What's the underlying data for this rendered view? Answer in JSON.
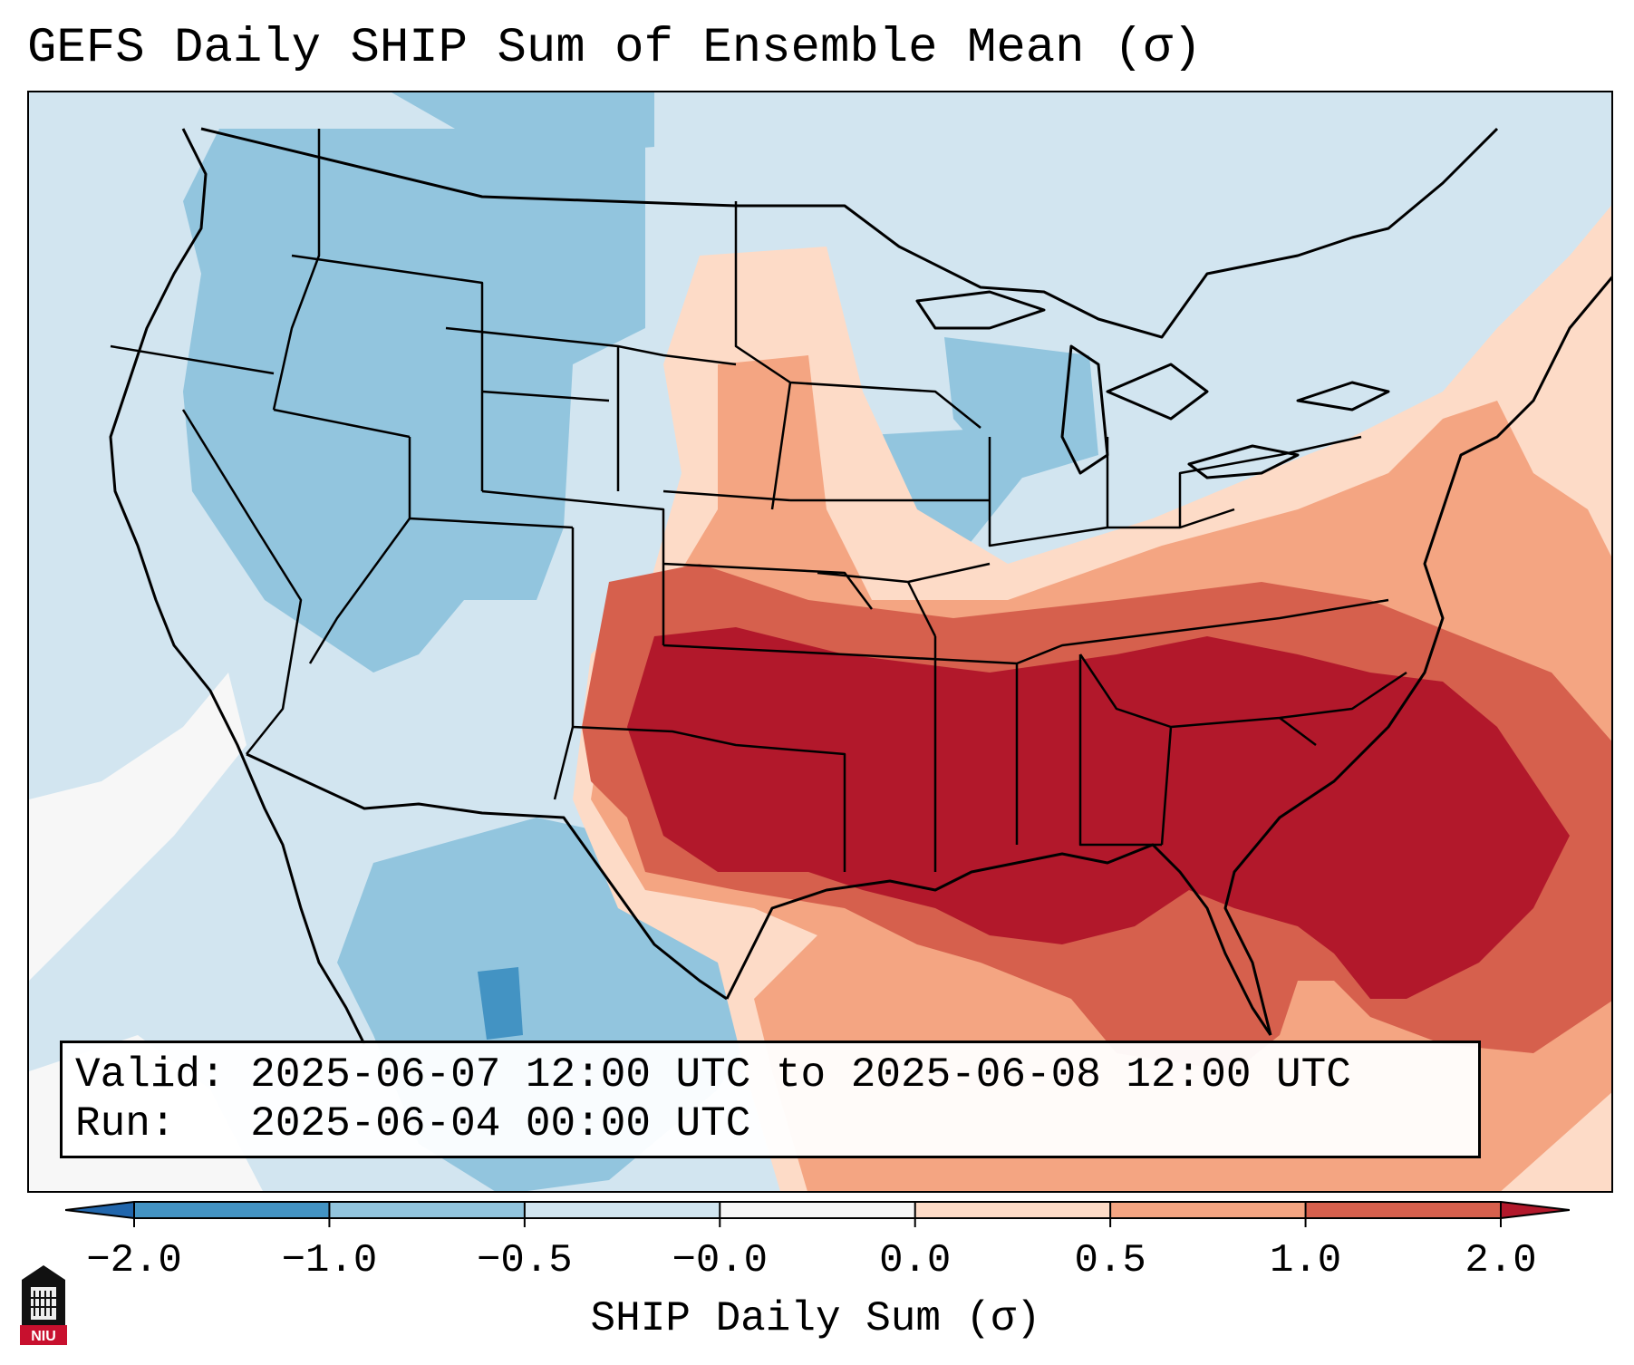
{
  "title": "GEFS Daily SHIP Sum of Ensemble Mean (σ)",
  "info": {
    "valid_label": "Valid:",
    "valid_value": "2025-06-07 12:00 UTC to 2025-06-08 12:00 UTC",
    "run_label": "Run:",
    "run_value": "2025-06-04 00:00 UTC"
  },
  "colorbar": {
    "label": "SHIP Daily Sum (σ)",
    "ticks": [
      "−2.0",
      "−1.0",
      "−0.5",
      "−0.0",
      "0.0",
      "0.5",
      "1.0",
      "2.0"
    ],
    "bins": [
      {
        "color": "#4393c3"
      },
      {
        "color": "#92c5de"
      },
      {
        "color": "#d1e5f0"
      },
      {
        "color": "#f7f7f7"
      },
      {
        "color": "#fddbc7"
      },
      {
        "color": "#f4a582"
      },
      {
        "color": "#d6604d"
      }
    ],
    "under_color": "#2166ac",
    "over_color": "#b2182b"
  },
  "palette": {
    "strong_positive": "#b2182b",
    "positive": "#d6604d",
    "weak_positive": "#f4a582",
    "slight_positive": "#fddbc7",
    "near_zero": "#f7f7f7",
    "slight_negative": "#d1e5f0",
    "negative": "#92c5de",
    "strong_negative": "#4393c3"
  },
  "logo": {
    "text": "NIU"
  }
}
